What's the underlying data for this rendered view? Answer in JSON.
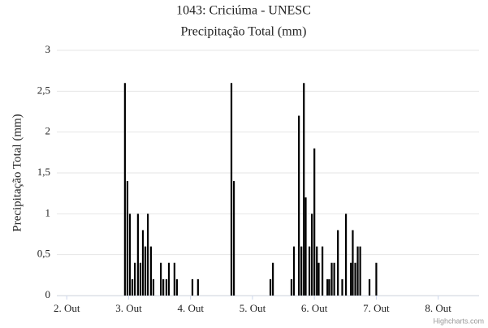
{
  "chart_data": {
    "type": "bar",
    "title": "1043: Criciúma - UNESC",
    "subtitle": "Precipitação Total (mm)",
    "y_label": "Precipitação Total (mm)",
    "credits": "Highcharts.com",
    "color": "#000000",
    "grid": true,
    "x": [
      2.94,
      2.98,
      3.02,
      3.06,
      3.1,
      3.15,
      3.19,
      3.23,
      3.27,
      3.31,
      3.36,
      3.4,
      3.52,
      3.56,
      3.61,
      3.65,
      3.74,
      3.78,
      4.03,
      4.12,
      4.66,
      4.7,
      5.29,
      5.33,
      5.63,
      5.67,
      5.75,
      5.79,
      5.83,
      5.86,
      5.92,
      5.96,
      6.0,
      6.04,
      6.07,
      6.13,
      6.21,
      6.24,
      6.28,
      6.32,
      6.38,
      6.45,
      6.51,
      6.59,
      6.62,
      6.66,
      6.7,
      6.74,
      6.89,
      7.0
    ],
    "values": [
      2.6,
      1.4,
      1.0,
      0.2,
      0.4,
      1.0,
      0.4,
      0.8,
      0.6,
      1.0,
      0.6,
      0.2,
      0.4,
      0.2,
      0.2,
      0.4,
      0.4,
      0.2,
      0.2,
      0.2,
      2.6,
      1.4,
      0.2,
      0.4,
      0.2,
      0.6,
      2.2,
      0.6,
      2.6,
      1.2,
      0.6,
      1.0,
      1.8,
      0.6,
      0.4,
      0.6,
      0.2,
      0.2,
      0.4,
      0.4,
      0.8,
      0.2,
      1.0,
      0.4,
      0.8,
      0.4,
      0.6,
      0.6,
      0.2,
      0.4
    ],
    "xlim": [
      1.84,
      8.66
    ],
    "xticks": [
      {
        "value": 2,
        "label": "2. Out"
      },
      {
        "value": 3,
        "label": "3. Out"
      },
      {
        "value": 4,
        "label": "4. Out"
      },
      {
        "value": 5,
        "label": "5. Out"
      },
      {
        "value": 6,
        "label": "6. Out"
      },
      {
        "value": 7,
        "label": "7. Out"
      },
      {
        "value": 8,
        "label": "8. Out"
      }
    ],
    "ylim": [
      0,
      3
    ],
    "yticks": [
      0,
      {
        "value": 0.5,
        "label": "0,5"
      },
      1,
      {
        "value": 1.5,
        "label": "1,5"
      },
      2,
      {
        "value": 2.5,
        "label": "2,5"
      },
      3
    ]
  }
}
